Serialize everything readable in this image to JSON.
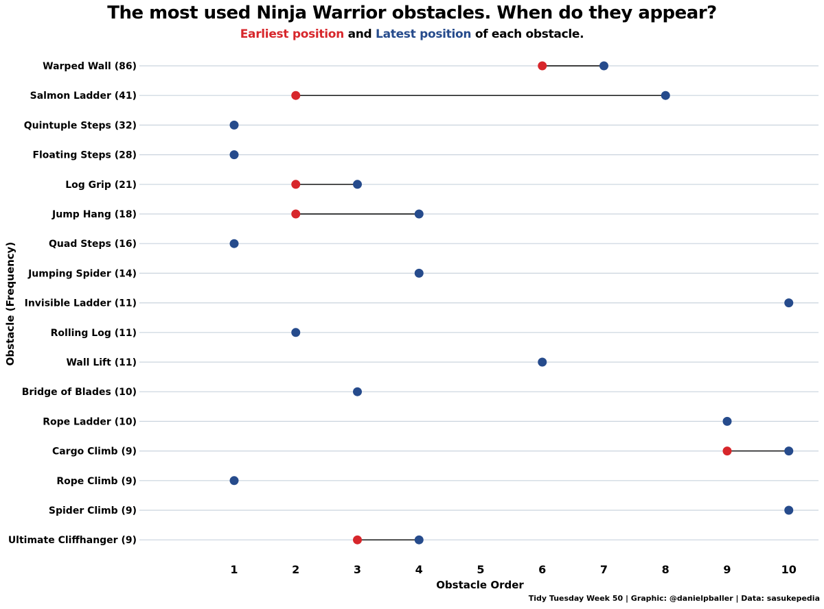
{
  "chart_data": {
    "type": "dumbbell",
    "title": "The most used Ninja Warrior obstacles. When do they appear?",
    "subtitle": {
      "earliest_label": "Earliest position",
      "and_text": " and ",
      "latest_label": "Latest position",
      "tail_text": " of each obstacle."
    },
    "xlabel": "Obstacle Order",
    "ylabel": "Obstacle (Frequency)",
    "xlim": [
      0,
      10.5
    ],
    "xticks": [
      "1",
      "2",
      "3",
      "4",
      "5",
      "6",
      "7",
      "8",
      "9",
      "10"
    ],
    "caption": "Tidy Tuesday Week 50 | Graphic: @danielpballer | Data: sasukepedia",
    "colors": {
      "earliest": "#d7262b",
      "latest": "#264b8c",
      "segment": "#000000",
      "grid": "#c9d3dd"
    },
    "obstacles": [
      {
        "label": "Warped Wall (86)",
        "earliest": 6,
        "latest": 7
      },
      {
        "label": "Salmon Ladder (41)",
        "earliest": 2,
        "latest": 8
      },
      {
        "label": "Quintuple Steps (32)",
        "earliest": 1,
        "latest": 1
      },
      {
        "label": "Floating Steps (28)",
        "earliest": 1,
        "latest": 1
      },
      {
        "label": "Log Grip (21)",
        "earliest": 2,
        "latest": 3
      },
      {
        "label": "Jump Hang (18)",
        "earliest": 2,
        "latest": 4
      },
      {
        "label": "Quad Steps (16)",
        "earliest": 1,
        "latest": 1
      },
      {
        "label": "Jumping Spider (14)",
        "earliest": 4,
        "latest": 4
      },
      {
        "label": "Invisible Ladder (11)",
        "earliest": 10,
        "latest": 10
      },
      {
        "label": "Rolling Log (11)",
        "earliest": 2,
        "latest": 2
      },
      {
        "label": "Wall Lift (11)",
        "earliest": 6,
        "latest": 6
      },
      {
        "label": "Bridge of Blades (10)",
        "earliest": 3,
        "latest": 3
      },
      {
        "label": "Rope Ladder (10)",
        "earliest": 9,
        "latest": 9
      },
      {
        "label": "Cargo Climb (9)",
        "earliest": 9,
        "latest": 10
      },
      {
        "label": "Rope Climb (9)",
        "earliest": 1,
        "latest": 1
      },
      {
        "label": "Spider Climb (9)",
        "earliest": 10,
        "latest": 10
      },
      {
        "label": "Ultimate Cliffhanger (9)",
        "earliest": 3,
        "latest": 4
      }
    ]
  }
}
